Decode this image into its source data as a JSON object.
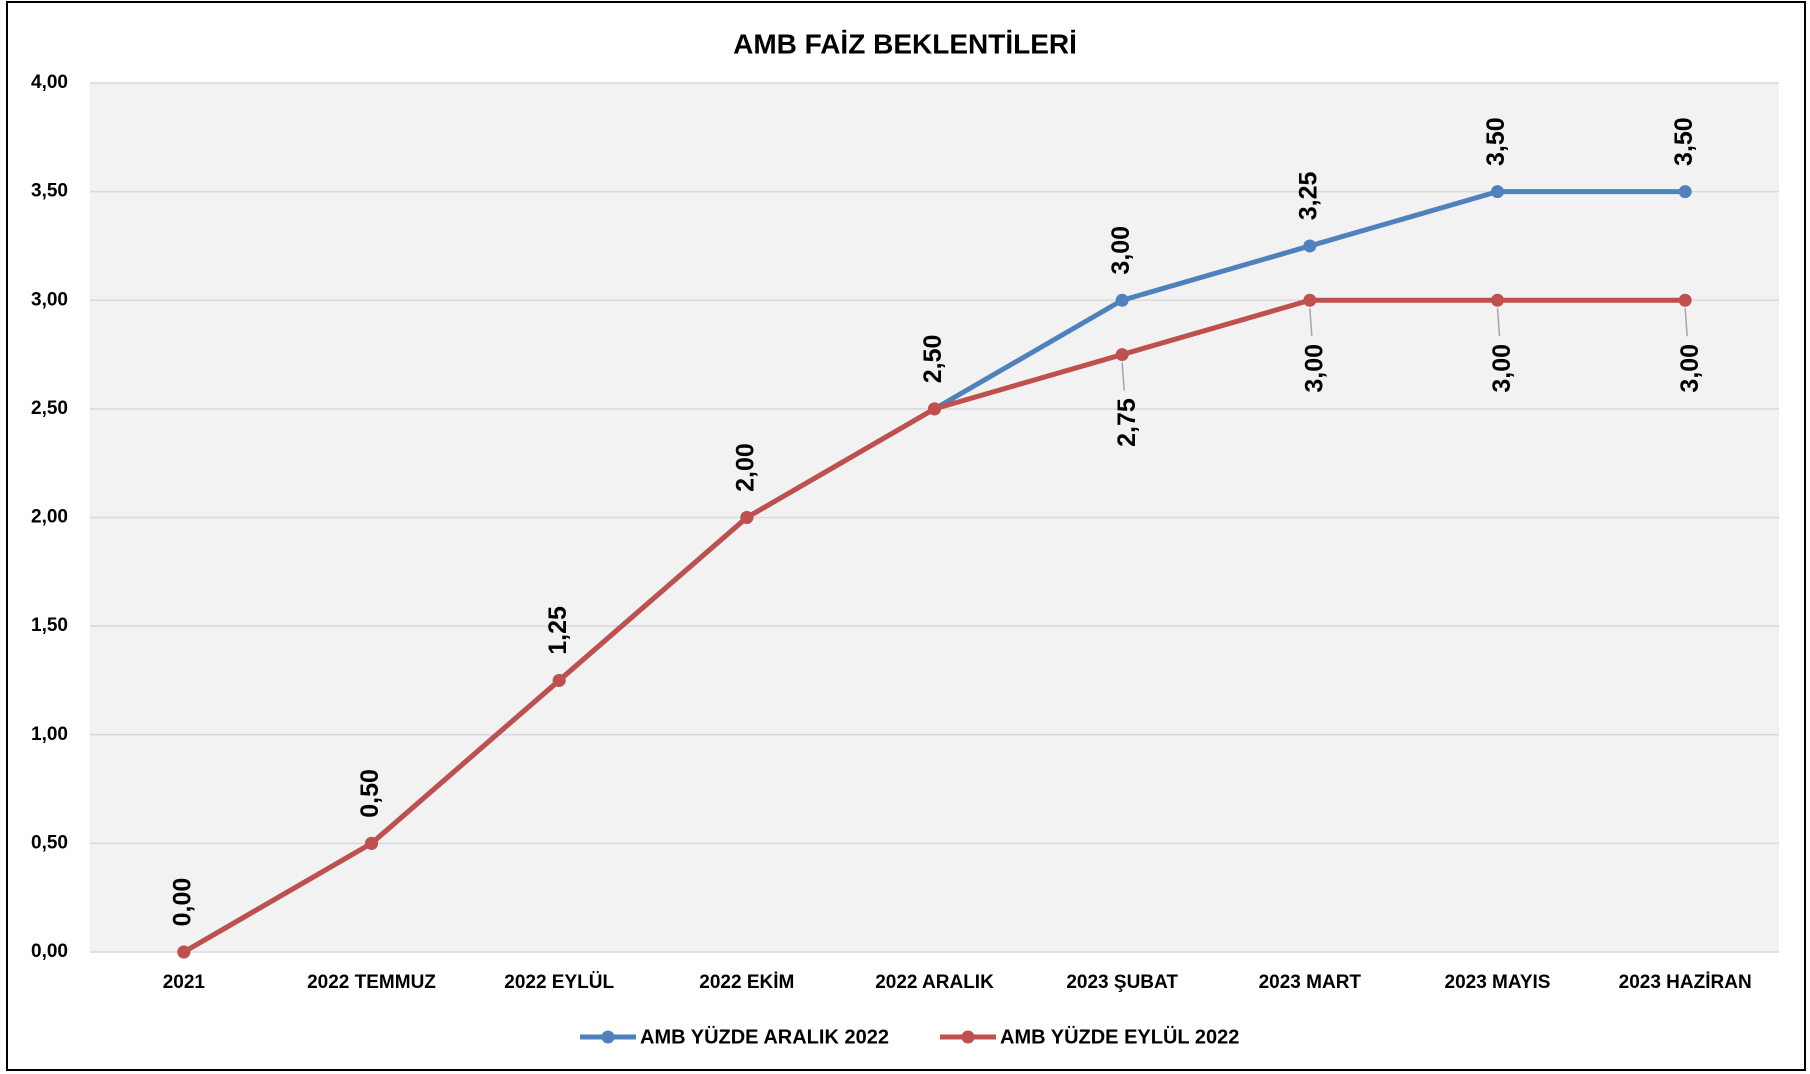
{
  "chart_data": {
    "type": "line",
    "title": "AMB FAİZ BEKLENTİLERİ",
    "categories": [
      "2021",
      "2022 TEMMUZ",
      "2022 EYLÜL",
      "2022 EKİM",
      "2022 ARALIK",
      "2023 ŞUBAT",
      "2023 MART",
      "2023 MAYIS",
      "2023 HAZİRAN"
    ],
    "series": [
      {
        "name": "AMB YÜZDE ARALIK 2022",
        "color": "#4f81bd",
        "values": [
          0,
          0.5,
          1.25,
          2,
          2.5,
          3,
          3.25,
          3.5,
          3.5
        ],
        "value_labels": [
          "0,00",
          "0,50",
          "1,25",
          "2,00",
          "2,50",
          "3,00",
          "3,25",
          "3,50",
          "3,50"
        ]
      },
      {
        "name": "AMB YÜZDE EYLÜL 2022",
        "color": "#c0504d",
        "values": [
          0,
          0.5,
          1.25,
          2,
          2.5,
          2.75,
          3,
          3,
          3
        ],
        "value_labels": [
          null,
          null,
          null,
          null,
          null,
          "2,75",
          "3,00",
          "3,00",
          "3,00"
        ]
      }
    ],
    "ylim": [
      0,
      4
    ],
    "yticks": [
      {
        "value": 0,
        "label": "0,00"
      },
      {
        "value": 0.5,
        "label": "0,50"
      },
      {
        "value": 1,
        "label": "1,00"
      },
      {
        "value": 1.5,
        "label": "1,50"
      },
      {
        "value": 2,
        "label": "2,00"
      },
      {
        "value": 2.5,
        "label": "2,50"
      },
      {
        "value": 3,
        "label": "3,00"
      },
      {
        "value": 3.5,
        "label": "3,50"
      },
      {
        "value": 4,
        "label": "4,00"
      }
    ],
    "grid": true
  }
}
